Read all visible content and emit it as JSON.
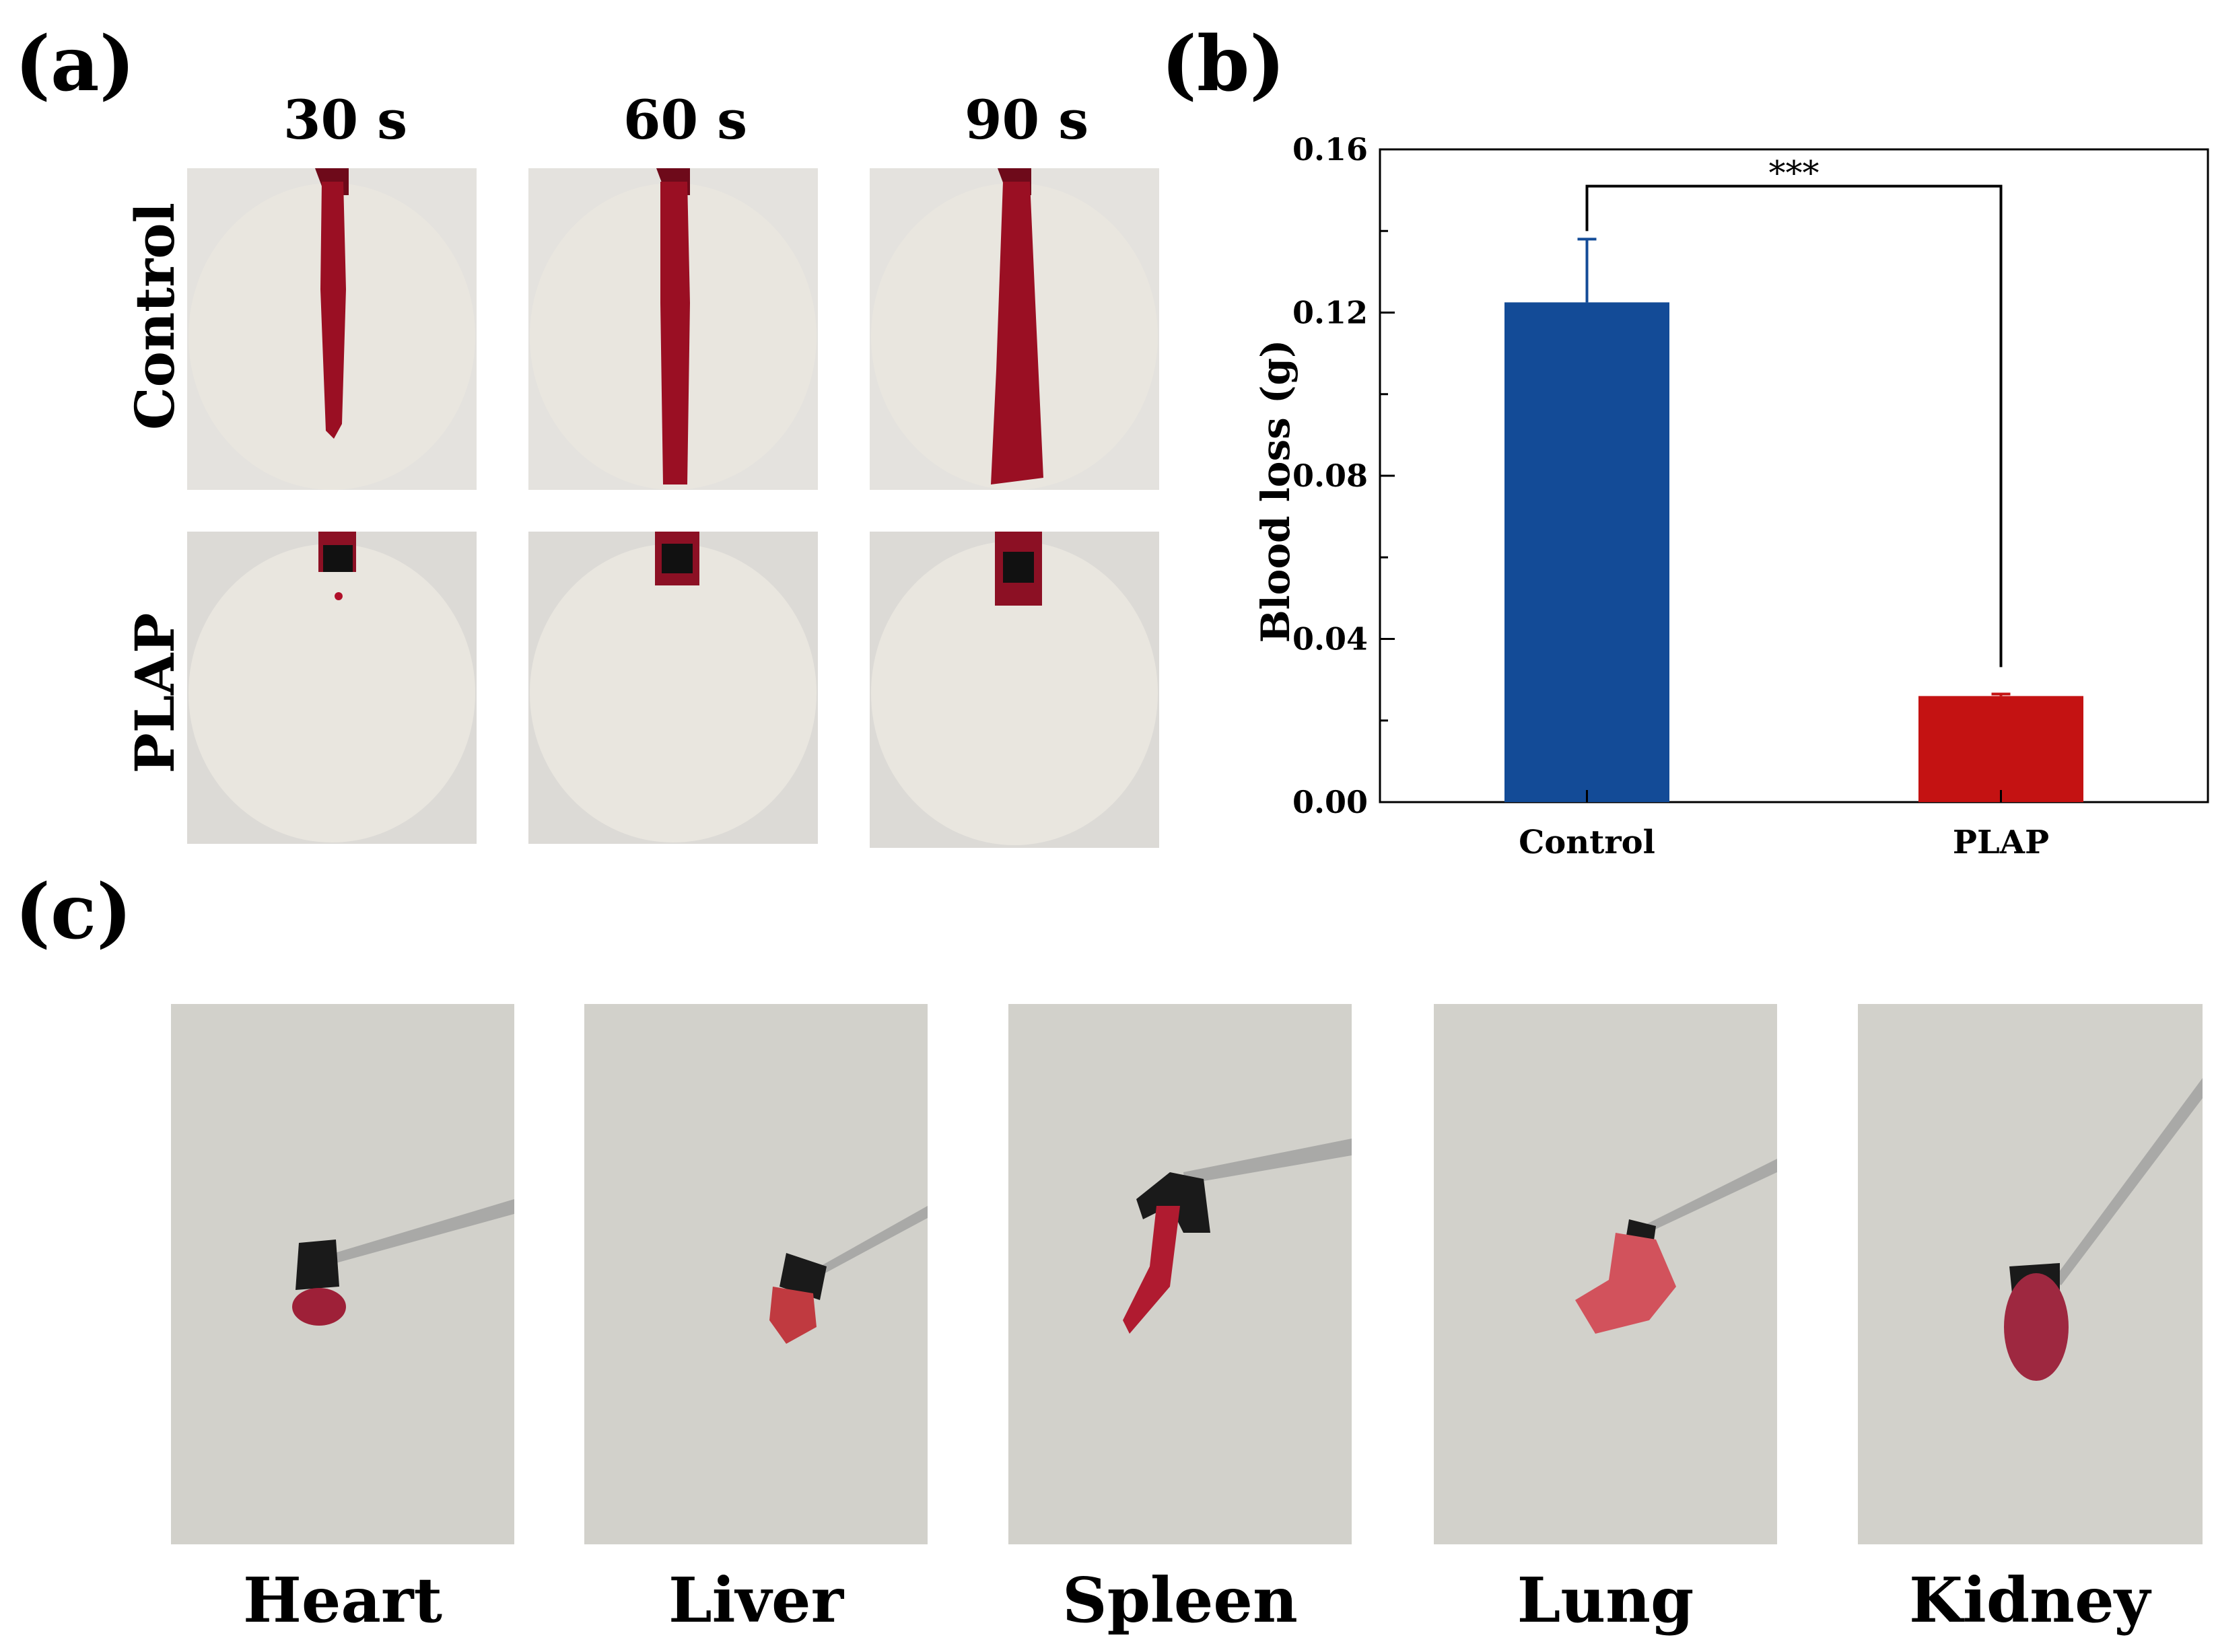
{
  "panel_labels": {
    "a": "(a)",
    "b": "(b)",
    "c": "(c)"
  },
  "panel_a": {
    "time_labels": [
      "30 s",
      "60 s",
      "90 s"
    ],
    "row_labels": [
      "Control",
      "PLAP"
    ]
  },
  "panel_c": {
    "organs": [
      "Heart",
      "Liver",
      "Spleen",
      "Lung",
      "Kidney"
    ]
  },
  "colors": {
    "control_bar": "#134b97",
    "plap_bar": "#c41212"
  },
  "chart_data": {
    "type": "bar",
    "categories": [
      "Control",
      "PLAP"
    ],
    "values": [
      0.1225,
      0.026
    ],
    "errors": [
      0.0155,
      0.0005
    ],
    "ylabel": "Blood loss (g)",
    "xlabel": "",
    "ylim": [
      0,
      0.16
    ],
    "yticks": [
      "0.00",
      "0.04",
      "0.08",
      "0.12",
      "0.16"
    ],
    "significance": {
      "between": [
        "Control",
        "PLAP"
      ],
      "label": "***"
    }
  }
}
